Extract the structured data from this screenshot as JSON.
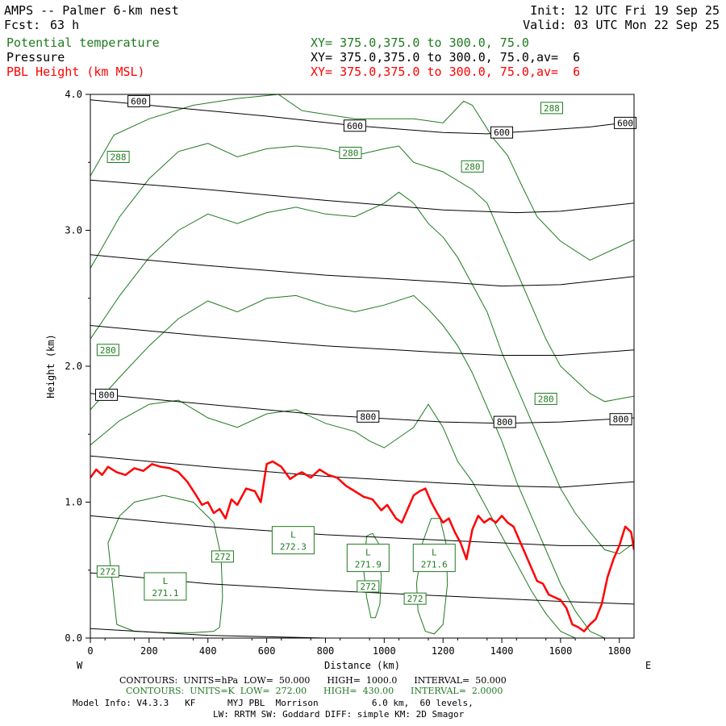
{
  "header": {
    "title": "AMPS -- Palmer 6-km nest",
    "fcst_label": "Fcst:",
    "fcst_value": "63 h",
    "init": "Init: 12 UTC Fri 19 Sep 25",
    "valid": "Valid: 03 UTC Mon 22 Sep 25",
    "fields": [
      {
        "name": "Potential temperature",
        "xy": "XY= 375.0,375.0 to 300.0, 75.0",
        "color": "#1f7a1f"
      },
      {
        "name": "Pressure",
        "xy": "XY= 375.0,375.0 to 300.0, 75.0,av=  6",
        "color": "#000000"
      },
      {
        "name": "PBL Height (km MSL)",
        "xy": "XY= 375.0,375.0 to 300.0, 75.0,av=  6",
        "color": "#ff0000"
      }
    ]
  },
  "footer": {
    "black_contours": "CONTOURS:  UNITS=hPa  LOW=  50.000      HIGH=  1000.0      INTERVAL=  50.000",
    "green_contours": "CONTOURS:  UNITS=K  LOW=  272.00      HIGH=  430.00      INTERVAL=  2.0000",
    "model_info": "Model Info: V4.3.3   KF      MYJ PBL  Morrison          6.0 km,  60 levels,",
    "model_info2": "LW: RRTM SW: Goddard DIFF: simple KM: 2D Smagor"
  },
  "colors": {
    "theta": "#1f7a1f",
    "pressure": "#000000",
    "pbl": "#ff0000"
  },
  "chart_data": {
    "type": "line",
    "title": "AMPS -- Palmer 6-km nest",
    "xlabel": "Distance (km)",
    "ylabel": "Height (km)",
    "xlim": [
      0,
      1850
    ],
    "ylim": [
      0,
      4.0
    ],
    "x_ticks": [
      0,
      200,
      400,
      600,
      800,
      1000,
      1200,
      1400,
      1600,
      1800
    ],
    "y_ticks": [
      0.0,
      1.0,
      2.0,
      3.0,
      4.0
    ],
    "y_tick_labels": [
      "0.0",
      "1.0",
      "2.0",
      "3.0",
      "4.0"
    ],
    "x_end_labels": {
      "left": "W",
      "right": "E"
    },
    "pressure_lines": [
      {
        "hPa": 600,
        "x": [
          0,
          300,
          600,
          900,
          1200,
          1350,
          1500,
          1700,
          1850
        ],
        "y": [
          3.96,
          3.9,
          3.84,
          3.77,
          3.72,
          3.71,
          3.73,
          3.76,
          3.8
        ]
      },
      {
        "x": [
          0,
          400,
          800,
          1200,
          1450,
          1600,
          1850
        ],
        "y": [
          3.37,
          3.3,
          3.22,
          3.15,
          3.13,
          3.14,
          3.2
        ]
      },
      {
        "x": [
          0,
          400,
          800,
          1200,
          1400,
          1600,
          1850
        ],
        "y": [
          2.82,
          2.74,
          2.67,
          2.62,
          2.59,
          2.6,
          2.66
        ]
      },
      {
        "x": [
          0,
          400,
          800,
          1200,
          1400,
          1600,
          1850
        ],
        "y": [
          2.3,
          2.22,
          2.15,
          2.1,
          2.08,
          2.08,
          2.12
        ]
      },
      {
        "hPa": 800,
        "x": [
          0,
          400,
          800,
          1200,
          1400,
          1600,
          1850
        ],
        "y": [
          1.8,
          1.72,
          1.64,
          1.59,
          1.58,
          1.59,
          1.62
        ]
      },
      {
        "x": [
          0,
          400,
          800,
          1200,
          1400,
          1600,
          1850
        ],
        "y": [
          1.34,
          1.26,
          1.19,
          1.14,
          1.12,
          1.11,
          1.15
        ]
      },
      {
        "x": [
          0,
          400,
          800,
          1200,
          1400,
          1600,
          1850
        ],
        "y": [
          0.9,
          0.82,
          0.76,
          0.72,
          0.7,
          0.68,
          0.68
        ]
      },
      {
        "x": [
          0,
          400,
          800,
          1200,
          1400,
          1600,
          1850
        ],
        "y": [
          0.48,
          0.4,
          0.35,
          0.31,
          0.29,
          0.27,
          0.25
        ]
      },
      {
        "x": [
          0,
          400,
          800,
          1200,
          1400,
          1600,
          1850
        ],
        "y": [
          0.07,
          0.02,
          0.0,
          0.0,
          0.0,
          0.0,
          0.0
        ]
      }
    ],
    "pressure_labels": [
      {
        "text": "600",
        "x": 165,
        "y": 3.95
      },
      {
        "text": "600",
        "x": 900,
        "y": 3.77
      },
      {
        "text": "600",
        "x": 1400,
        "y": 3.72
      },
      {
        "text": "600",
        "x": 1820,
        "y": 3.79
      },
      {
        "text": "800",
        "x": 55,
        "y": 1.79
      },
      {
        "text": "800",
        "x": 945,
        "y": 1.63
      },
      {
        "text": "800",
        "x": 1410,
        "y": 1.59
      },
      {
        "text": "800",
        "x": 1805,
        "y": 1.61
      }
    ],
    "theta_lines": [
      {
        "x": [
          0,
          80,
          200,
          350,
          500,
          640,
          720,
          900,
          1100,
          1200,
          1270,
          1300,
          1370,
          1420,
          1470,
          1520,
          1600,
          1700,
          1850
        ],
        "y": [
          3.4,
          3.7,
          3.82,
          3.92,
          3.97,
          4.0,
          3.88,
          3.82,
          3.82,
          3.79,
          3.95,
          3.92,
          3.68,
          3.55,
          3.32,
          3.1,
          2.92,
          2.78,
          2.93
        ]
      },
      {
        "x": [
          0,
          100,
          200,
          300,
          400,
          500,
          600,
          700,
          800,
          900,
          1000,
          1050,
          1100,
          1200,
          1300,
          1350,
          1400,
          1450,
          1500,
          1550,
          1600,
          1650,
          1700,
          1750,
          1850
        ],
        "y": [
          2.72,
          3.1,
          3.38,
          3.58,
          3.64,
          3.54,
          3.6,
          3.62,
          3.6,
          3.55,
          3.6,
          3.62,
          3.5,
          3.43,
          3.3,
          3.2,
          2.95,
          2.7,
          2.45,
          2.2,
          2.0,
          1.9,
          1.8,
          1.74,
          1.78
        ]
      },
      {
        "x": [
          0,
          100,
          200,
          300,
          400,
          500,
          600,
          700,
          800,
          900,
          1000,
          1050,
          1100,
          1150,
          1200,
          1250,
          1300,
          1350,
          1400,
          1450,
          1500,
          1550,
          1600,
          1650,
          1700,
          1750,
          1800,
          1850
        ],
        "y": [
          2.2,
          2.52,
          2.8,
          3.0,
          3.12,
          3.05,
          3.13,
          3.17,
          3.12,
          3.1,
          3.2,
          3.28,
          3.2,
          3.05,
          2.95,
          2.8,
          2.6,
          2.4,
          2.1,
          1.85,
          1.6,
          1.35,
          1.1,
          0.92,
          0.78,
          0.65,
          0.62,
          0.7
        ]
      },
      {
        "x": [
          0,
          100,
          200,
          300,
          400,
          500,
          600,
          700,
          800,
          900,
          1000,
          1100,
          1150,
          1200,
          1250,
          1300,
          1350,
          1400,
          1450,
          1500,
          1550,
          1600,
          1650,
          1700,
          1750,
          1800,
          1850
        ],
        "y": [
          1.68,
          1.92,
          2.15,
          2.35,
          2.48,
          2.4,
          2.5,
          2.52,
          2.45,
          2.4,
          2.45,
          2.52,
          2.42,
          2.3,
          2.15,
          1.95,
          1.7,
          1.45,
          1.15,
          0.9,
          0.65,
          0.4,
          0.2,
          0.05,
          0.0,
          0.0,
          0.0
        ]
      },
      {
        "x": [
          0,
          100,
          200,
          300,
          400,
          500,
          600,
          700,
          800,
          900,
          950,
          1000,
          1100,
          1150,
          1200,
          1250,
          1300,
          1350,
          1400,
          1450,
          1500,
          1550,
          1600,
          1650,
          1700
        ],
        "y": [
          1.42,
          1.6,
          1.72,
          1.75,
          1.62,
          1.55,
          1.65,
          1.68,
          1.58,
          1.52,
          1.45,
          1.4,
          1.55,
          1.72,
          1.55,
          1.3,
          1.15,
          0.95,
          0.75,
          0.55,
          0.35,
          0.18,
          0.05,
          0.0,
          0.0
        ]
      }
    ],
    "theta_labels": [
      {
        "text": "288",
        "x": 95,
        "y": 3.54
      },
      {
        "text": "288",
        "x": 1570,
        "y": 3.9
      },
      {
        "text": "280",
        "x": 885,
        "y": 3.57
      },
      {
        "text": "280",
        "x": 1300,
        "y": 3.47
      },
      {
        "text": "280",
        "x": 60,
        "y": 2.12
      },
      {
        "text": "280",
        "x": 1550,
        "y": 1.76
      },
      {
        "text": "272",
        "x": 60,
        "y": 0.49
      },
      {
        "text": "272",
        "x": 450,
        "y": 0.6
      },
      {
        "text": "272",
        "x": 945,
        "y": 0.38
      },
      {
        "text": "272",
        "x": 1105,
        "y": 0.29
      }
    ],
    "lows": [
      {
        "label": "L",
        "value": "271.1",
        "x": 255,
        "y": 0.38
      },
      {
        "label": "L",
        "value": "272.3",
        "x": 690,
        "y": 0.72
      },
      {
        "label": "L",
        "value": "271.9",
        "x": 945,
        "y": 0.59
      },
      {
        "label": "L",
        "value": "271.6",
        "x": 1170,
        "y": 0.59
      }
    ],
    "cold_pools": [
      {
        "x": [
          60,
          100,
          150,
          250,
          350,
          420,
          445,
          450,
          440,
          420,
          350,
          250,
          150,
          90,
          60
        ],
        "y": [
          0.7,
          0.9,
          1.0,
          1.05,
          1.0,
          0.85,
          0.6,
          0.3,
          0.08,
          0.05,
          0.04,
          0.04,
          0.05,
          0.1,
          0.7
        ]
      },
      {
        "x": [
          930,
          940,
          960,
          980,
          990,
          985,
          970,
          955,
          940,
          930
        ],
        "y": [
          0.5,
          0.75,
          0.77,
          0.7,
          0.45,
          0.25,
          0.15,
          0.15,
          0.3,
          0.5
        ]
      },
      {
        "x": [
          1110,
          1130,
          1160,
          1190,
          1210,
          1215,
          1200,
          1170,
          1140,
          1115,
          1110
        ],
        "y": [
          0.4,
          0.7,
          0.88,
          0.88,
          0.7,
          0.4,
          0.1,
          0.03,
          0.05,
          0.2,
          0.4
        ]
      }
    ],
    "pbl_height": {
      "x": [
        0,
        20,
        40,
        60,
        90,
        120,
        150,
        180,
        210,
        240,
        270,
        300,
        330,
        360,
        380,
        400,
        420,
        440,
        460,
        480,
        500,
        530,
        560,
        580,
        600,
        620,
        650,
        680,
        700,
        720,
        750,
        780,
        810,
        840,
        870,
        900,
        930,
        960,
        990,
        1010,
        1040,
        1060,
        1080,
        1100,
        1120,
        1140,
        1160,
        1180,
        1200,
        1220,
        1240,
        1260,
        1280,
        1300,
        1320,
        1340,
        1360,
        1380,
        1400,
        1420,
        1440,
        1460,
        1480,
        1500,
        1520,
        1540,
        1560,
        1580,
        1600,
        1620,
        1640,
        1660,
        1680,
        1700,
        1720,
        1740,
        1760,
        1780,
        1800,
        1820,
        1840,
        1850
      ],
      "y": [
        1.18,
        1.24,
        1.2,
        1.26,
        1.22,
        1.2,
        1.25,
        1.23,
        1.28,
        1.26,
        1.25,
        1.22,
        1.15,
        1.05,
        0.98,
        1.0,
        0.92,
        0.95,
        0.88,
        1.02,
        0.98,
        1.1,
        1.08,
        1.0,
        1.28,
        1.3,
        1.26,
        1.17,
        1.2,
        1.22,
        1.18,
        1.24,
        1.2,
        1.18,
        1.12,
        1.08,
        1.04,
        1.02,
        0.94,
        0.98,
        0.88,
        0.85,
        0.95,
        1.05,
        1.08,
        1.1,
        1.0,
        0.92,
        0.85,
        0.88,
        0.78,
        0.7,
        0.58,
        0.8,
        0.9,
        0.85,
        0.88,
        0.85,
        0.9,
        0.85,
        0.82,
        0.72,
        0.62,
        0.52,
        0.42,
        0.4,
        0.32,
        0.3,
        0.28,
        0.22,
        0.1,
        0.08,
        0.05,
        0.1,
        0.14,
        0.25,
        0.45,
        0.58,
        0.68,
        0.82,
        0.78,
        0.65
      ]
    }
  }
}
